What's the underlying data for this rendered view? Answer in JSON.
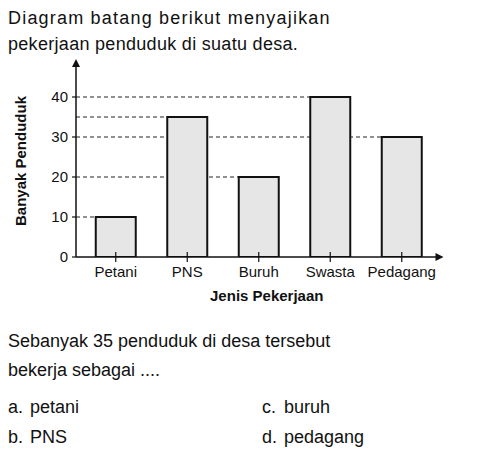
{
  "intro_lines": [
    "Diagram batang berikut menyajikan",
    "pekerjaan penduduk di suatu desa."
  ],
  "chart_data": {
    "type": "bar",
    "x_label": "Jenis Pekerjaan",
    "y_label": "Banyak Penduduk",
    "categories": [
      "Petani",
      "PNS",
      "Buruh",
      "Swasta",
      "Pedagang"
    ],
    "values": [
      10,
      35,
      20,
      40,
      30
    ],
    "color": "#e6e6e6",
    "ylim": [
      0,
      48
    ],
    "yticks": [
      0,
      10,
      20,
      30,
      40
    ]
  },
  "question_lines": [
    "Sebanyak 35 penduduk di desa tersebut",
    "bekerja sebagai ...."
  ],
  "options": [
    {
      "letter": "a.",
      "text": "petani"
    },
    {
      "letter": "c.",
      "text": "buruh"
    },
    {
      "letter": "b.",
      "text": "PNS"
    },
    {
      "letter": "d.",
      "text": "pedagang"
    }
  ]
}
